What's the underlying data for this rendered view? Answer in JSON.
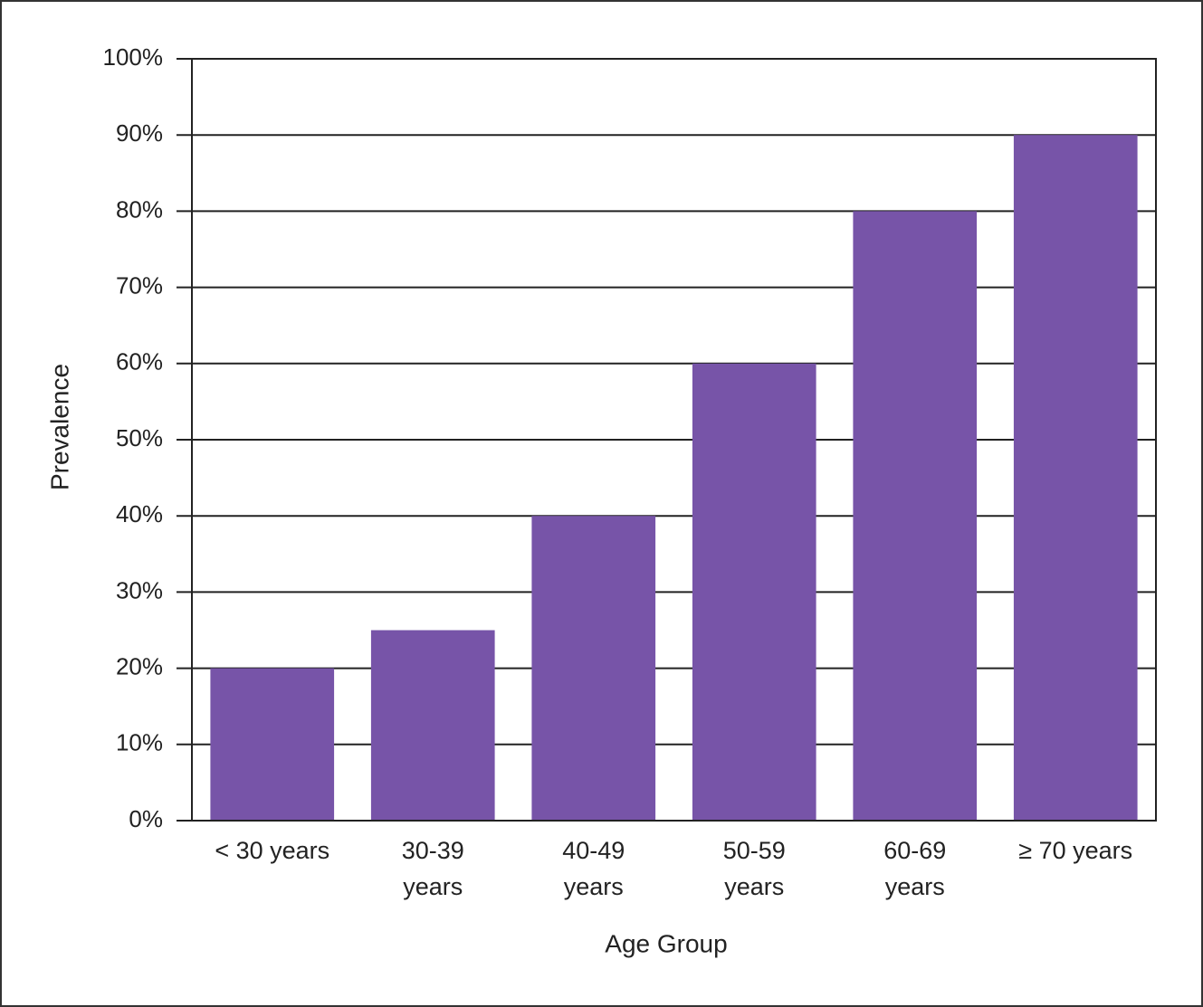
{
  "chart_data": {
    "type": "bar",
    "x_label": "Age Group",
    "y_label": "Prevalence",
    "categories": [
      "< 30 years",
      "30-39\nyears",
      "40-49\nyears",
      "50-59\nyears",
      "60-69\nyears",
      "≥ 70 years"
    ],
    "values": [
      20,
      25,
      40,
      60,
      80,
      90
    ],
    "color": "#7754a8",
    "ylim": [
      0,
      100
    ],
    "yticks": [
      {
        "value": 0,
        "label": "0%"
      },
      {
        "value": 10,
        "label": "10%"
      },
      {
        "value": 20,
        "label": "20%"
      },
      {
        "value": 30,
        "label": "30%"
      },
      {
        "value": 40,
        "label": "40%"
      },
      {
        "value": 50,
        "label": "50%"
      },
      {
        "value": 60,
        "label": "60%"
      },
      {
        "value": 70,
        "label": "70%"
      },
      {
        "value": 80,
        "label": "80%"
      },
      {
        "value": 90,
        "label": "90%"
      },
      {
        "value": 100,
        "label": "100%"
      }
    ],
    "grid": true
  }
}
